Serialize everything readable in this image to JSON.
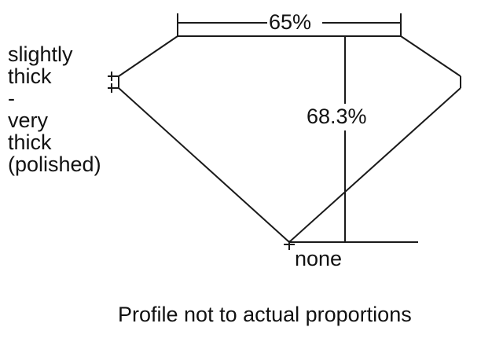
{
  "labels": {
    "table": "65%",
    "depth": "68.3%",
    "culet": "none",
    "girdle_lines": [
      "slightly",
      "thick",
      "-",
      "very",
      "thick",
      "(polished)"
    ]
  },
  "caption": "Profile not to actual proportions",
  "line_color": "#1a1a1a"
}
